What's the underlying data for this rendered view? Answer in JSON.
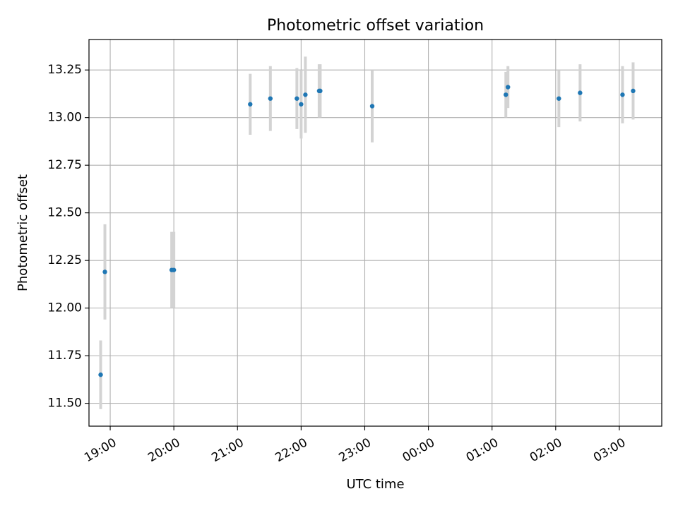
{
  "chart_data": {
    "type": "scatter",
    "title": "Photometric offset variation",
    "xlabel": "UTC time",
    "ylabel": "Photometric offset",
    "grid": true,
    "x_range": [
      "18:40",
      "03:40"
    ],
    "ylim": [
      11.38,
      13.41
    ],
    "x_ticks": [
      "19:00",
      "20:00",
      "21:00",
      "22:00",
      "23:00",
      "00:00",
      "01:00",
      "02:00",
      "03:00"
    ],
    "y_ticks": [
      "11.50",
      "11.75",
      "12.00",
      "12.25",
      "12.50",
      "12.75",
      "13.00",
      "13.25"
    ],
    "colors": {
      "marker": "#1f77b4",
      "error_bar": "#d3d3d3",
      "grid": "#b0b0b0"
    },
    "points": [
      {
        "x": "18:51",
        "y": 11.65,
        "err": 0.18
      },
      {
        "x": "18:55",
        "y": 12.19,
        "err": 0.25
      },
      {
        "x": "19:58",
        "y": 12.2,
        "err": 0.2
      },
      {
        "x": "20:00",
        "y": 12.2,
        "err": 0.2
      },
      {
        "x": "21:12",
        "y": 13.07,
        "err": 0.16
      },
      {
        "x": "21:31",
        "y": 13.1,
        "err": 0.17
      },
      {
        "x": "21:56",
        "y": 13.1,
        "err": 0.16
      },
      {
        "x": "22:00",
        "y": 13.07,
        "err": 0.18
      },
      {
        "x": "22:04",
        "y": 13.12,
        "err": 0.2
      },
      {
        "x": "22:17",
        "y": 13.14,
        "err": 0.14
      },
      {
        "x": "22:18",
        "y": 13.14,
        "err": 0.14
      },
      {
        "x": "23:07",
        "y": 13.06,
        "err": 0.19
      },
      {
        "x": "01:13",
        "y": 13.12,
        "err": 0.12
      },
      {
        "x": "01:15",
        "y": 13.16,
        "err": 0.11
      },
      {
        "x": "02:03",
        "y": 13.1,
        "err": 0.15
      },
      {
        "x": "02:23",
        "y": 13.13,
        "err": 0.15
      },
      {
        "x": "03:03",
        "y": 13.12,
        "err": 0.15
      },
      {
        "x": "03:13",
        "y": 13.14,
        "err": 0.15
      }
    ]
  }
}
